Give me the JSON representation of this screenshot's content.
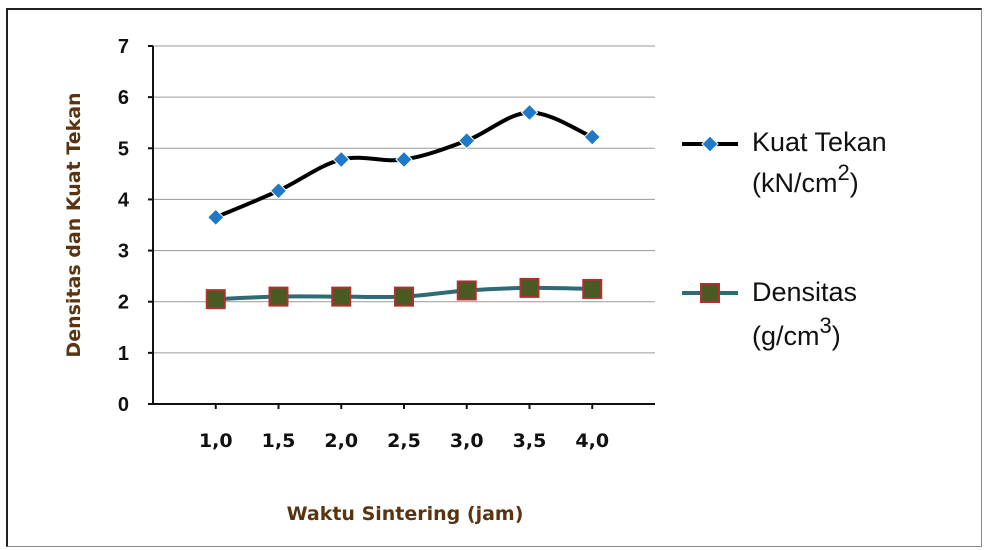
{
  "chart_data": {
    "type": "line",
    "categories": [
      "1,0",
      "1,5",
      "2,0",
      "2,5",
      "3,0",
      "3,5",
      "4,0"
    ],
    "x": [
      1.0,
      1.5,
      2.0,
      2.5,
      3.0,
      3.5,
      4.0
    ],
    "series": [
      {
        "name_line1": "Kuat Tekan",
        "name_line2_prefix": "(kN/cm",
        "name_line2_sup": "2",
        "name_line2_suffix": ")",
        "values": [
          3.65,
          4.17,
          4.78,
          4.78,
          5.15,
          5.7,
          5.22
        ],
        "line_color": "#000000",
        "marker": "diamond",
        "marker_color": "#1f78c8"
      },
      {
        "name_line1": "Densitas",
        "name_line2_prefix": "(g/cm",
        "name_line2_sup": "3",
        "name_line2_suffix": ")",
        "values": [
          2.05,
          2.1,
          2.1,
          2.1,
          2.22,
          2.27,
          2.25
        ],
        "line_color": "#2f6b77",
        "marker": "square",
        "marker_color": "#4a5a22",
        "marker_edge": "#b03030"
      }
    ],
    "xlabel": "Waktu Sintering (jam)",
    "ylabel": "Densitas dan Kuat Tekan",
    "ylim": [
      0,
      7
    ],
    "yticks": [
      "0",
      "1",
      "2",
      "3",
      "4",
      "5",
      "6",
      "7"
    ],
    "grid": true,
    "legend_position": "right"
  }
}
